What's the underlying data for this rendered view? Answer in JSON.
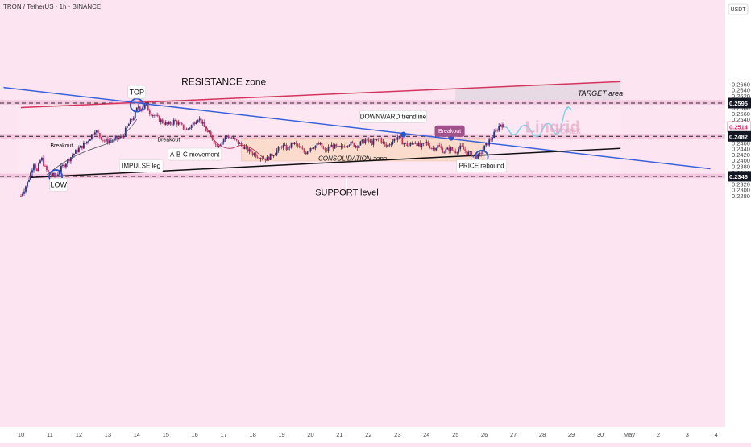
{
  "header": {
    "symbol": "TRON / TetherUS · 1h · BINANCE"
  },
  "price_axis": {
    "currency": "USDT"
  },
  "colors": {
    "bull": "#2a2f8f",
    "bear": "#e0245e",
    "trend_blue": "#3a62d8",
    "resistance_line": "#d3355c",
    "support_line": "#111111",
    "forecast": "#7fd0e6",
    "zone_fill": "#f3c1dc",
    "consolidation_fill": "#fad8c0"
  },
  "chart_data": {
    "type": "candlestick",
    "title": "",
    "xlabel": "",
    "ylabel": "",
    "ylim": [
      0.2275,
      0.2695
    ],
    "x_ticks": [
      "10",
      "11",
      "12",
      "13",
      "14",
      "15",
      "16",
      "17",
      "18",
      "19",
      "20",
      "21",
      "22",
      "23",
      "24",
      "25",
      "26",
      "27",
      "28",
      "29",
      "30",
      "May",
      "2",
      "3",
      "4"
    ],
    "y_ticks": [
      "0.2660",
      "0.2640",
      "0.2620",
      "0.2600",
      "0.2580",
      "0.2560",
      "0.2540",
      "0.2520",
      "0.2500",
      "0.2460",
      "0.2440",
      "0.2420",
      "0.2400",
      "0.2380",
      "0.2360",
      "0.2320",
      "0.2300",
      "0.2280"
    ],
    "price_labels": [
      {
        "value": 0.2595,
        "label": "0.2595",
        "style": "dark"
      },
      {
        "value": 0.2514,
        "label": "0.2514",
        "style": "red"
      },
      {
        "value": 0.2482,
        "label": "0.2482",
        "style": "dark"
      },
      {
        "value": 0.2346,
        "label": "0.2346",
        "style": "dark"
      }
    ],
    "horizontal_levels": [
      0.2595,
      0.2482,
      0.2346
    ],
    "close_anchors": [
      [
        10.0,
        0.228
      ],
      [
        10.25,
        0.233
      ],
      [
        10.45,
        0.2395
      ],
      [
        10.55,
        0.236
      ],
      [
        10.7,
        0.241
      ],
      [
        10.85,
        0.237
      ],
      [
        11.0,
        0.2352
      ],
      [
        11.2,
        0.2346
      ],
      [
        11.4,
        0.2375
      ],
      [
        11.7,
        0.241
      ],
      [
        12.0,
        0.244
      ],
      [
        12.2,
        0.2455
      ],
      [
        12.4,
        0.248
      ],
      [
        12.55,
        0.2505
      ],
      [
        12.7,
        0.2485
      ],
      [
        12.9,
        0.2465
      ],
      [
        13.2,
        0.247
      ],
      [
        13.5,
        0.248
      ],
      [
        13.7,
        0.252
      ],
      [
        13.9,
        0.255
      ],
      [
        14.05,
        0.2585
      ],
      [
        14.15,
        0.2572
      ],
      [
        14.3,
        0.2588
      ],
      [
        14.45,
        0.2565
      ],
      [
        14.7,
        0.2545
      ],
      [
        14.9,
        0.253
      ],
      [
        15.1,
        0.252
      ],
      [
        15.3,
        0.2535
      ],
      [
        15.5,
        0.252
      ],
      [
        15.7,
        0.2502
      ],
      [
        15.9,
        0.252
      ],
      [
        16.1,
        0.2545
      ],
      [
        16.2,
        0.2535
      ],
      [
        16.4,
        0.25
      ],
      [
        16.55,
        0.2485
      ],
      [
        16.75,
        0.245
      ],
      [
        16.95,
        0.2465
      ],
      [
        17.1,
        0.2485
      ],
      [
        17.3,
        0.2475
      ],
      [
        17.5,
        0.246
      ],
      [
        17.7,
        0.2445
      ],
      [
        17.9,
        0.243
      ],
      [
        18.2,
        0.2415
      ],
      [
        18.5,
        0.2405
      ],
      [
        18.8,
        0.243
      ],
      [
        19.0,
        0.245
      ],
      [
        19.2,
        0.244
      ],
      [
        19.4,
        0.246
      ],
      [
        19.6,
        0.2445
      ],
      [
        19.8,
        0.2425
      ],
      [
        20.0,
        0.2445
      ],
      [
        20.3,
        0.2455
      ],
      [
        20.5,
        0.243
      ],
      [
        20.7,
        0.245
      ],
      [
        21.0,
        0.244
      ],
      [
        21.3,
        0.246
      ],
      [
        21.6,
        0.245
      ],
      [
        21.9,
        0.247
      ],
      [
        22.1,
        0.246
      ],
      [
        22.4,
        0.2475
      ],
      [
        22.6,
        0.2445
      ],
      [
        22.8,
        0.2465
      ],
      [
        23.0,
        0.248
      ],
      [
        23.2,
        0.246
      ],
      [
        23.4,
        0.245
      ],
      [
        23.6,
        0.2465
      ],
      [
        23.8,
        0.2445
      ],
      [
        24.0,
        0.246
      ],
      [
        24.2,
        0.244
      ],
      [
        24.4,
        0.245
      ],
      [
        24.6,
        0.243
      ],
      [
        24.8,
        0.244
      ],
      [
        25.0,
        0.2432
      ],
      [
        25.2,
        0.2445
      ],
      [
        25.4,
        0.2425
      ],
      [
        25.6,
        0.242
      ],
      [
        25.8,
        0.2412
      ],
      [
        26.0,
        0.2445
      ],
      [
        26.2,
        0.247
      ],
      [
        26.4,
        0.25
      ],
      [
        26.55,
        0.2525
      ],
      [
        26.7,
        0.2514
      ]
    ],
    "forecast_path": [
      [
        26.7,
        0.2514
      ],
      [
        27.0,
        0.2488
      ],
      [
        27.4,
        0.252
      ],
      [
        27.8,
        0.2482
      ],
      [
        28.2,
        0.2525
      ],
      [
        28.5,
        0.249
      ],
      [
        28.9,
        0.2582
      ]
    ],
    "lines": [
      {
        "name": "resistance-line",
        "from": [
          10.0,
          0.258
        ],
        "to": [
          30.7,
          0.2668
        ]
      },
      {
        "name": "downward-trendline",
        "from": [
          9.4,
          0.2648
        ],
        "to": [
          33.8,
          0.2372
        ]
      },
      {
        "name": "support-trendline",
        "from": [
          10.3,
          0.2342
        ],
        "to": [
          30.7,
          0.2441
        ]
      }
    ],
    "zones": [
      {
        "name": "resistance-zone",
        "from": 0.259,
        "to": 0.2605
      },
      {
        "name": "mid-zone",
        "from": 0.2475,
        "to": 0.249
      },
      {
        "name": "support-zone",
        "from": 0.234,
        "to": 0.2355
      },
      {
        "name": "consolidation-box",
        "x0": 17.6,
        "x1": 26.0,
        "y0": 0.2398,
        "y1": 0.2475
      }
    ],
    "annotations": [
      {
        "name": "resistance-zone-label",
        "text": "RESISTANCE zone",
        "x": 17.0,
        "y": 0.2668,
        "size": 12
      },
      {
        "name": "target-area-label",
        "text": "TARGET area",
        "x": 30.0,
        "y": 0.2628,
        "size": 9,
        "italic": true
      },
      {
        "name": "top-label",
        "text": "TOP",
        "x": 14.0,
        "y": 0.2633,
        "size": 9,
        "box": true
      },
      {
        "name": "low-label",
        "text": "LOW",
        "x": 11.3,
        "y": 0.2318,
        "size": 9,
        "box": true
      },
      {
        "name": "downward-trendline-label",
        "text": "DOWNWARD trendline",
        "x": 22.85,
        "y": 0.2549,
        "size": 8,
        "box": true
      },
      {
        "name": "breakout-left-label",
        "text": "Breakout",
        "x": 11.4,
        "y": 0.2451,
        "size": 7
      },
      {
        "name": "breakout-mid-label",
        "text": "Breakout",
        "x": 15.1,
        "y": 0.2472,
        "size": 7
      },
      {
        "name": "breakout-right-label",
        "text": "Breakout",
        "x": 24.8,
        "y": 0.25,
        "size": 7,
        "pill": true
      },
      {
        "name": "abc-movement-label",
        "text": "A-B-C movement",
        "x": 16.0,
        "y": 0.2421,
        "size": 8,
        "box": true
      },
      {
        "name": "impulse-leg-label",
        "text": "IMPULSE leg",
        "x": 14.15,
        "y": 0.2382,
        "size": 8,
        "box": true
      },
      {
        "name": "consolidation-zone-label",
        "text": "CONSOLIDATION zone",
        "x": 21.45,
        "y": 0.2407,
        "size": 8,
        "italic": true
      },
      {
        "name": "price-rebound-label",
        "text": "PRICE rebound",
        "x": 25.9,
        "y": 0.2382,
        "size": 8,
        "box": true
      },
      {
        "name": "support-level-label",
        "text": "SUPPORT level",
        "x": 21.25,
        "y": 0.2292,
        "size": 11
      },
      {
        "name": "watermark-main",
        "text": "Lingrid",
        "x": 28.35,
        "y": 0.2514,
        "size": 20,
        "watermark": true
      },
      {
        "name": "watermark-sub",
        "text": "FOREX",
        "x": 28.9,
        "y": 0.2499,
        "size": 9,
        "watermark": true
      }
    ],
    "circles": [
      [
        14.0,
        0.2588
      ],
      [
        11.2,
        0.2346
      ],
      [
        25.9,
        0.2412
      ]
    ],
    "dots": [
      [
        23.2,
        0.2488
      ],
      [
        24.85,
        0.2477
      ]
    ]
  }
}
